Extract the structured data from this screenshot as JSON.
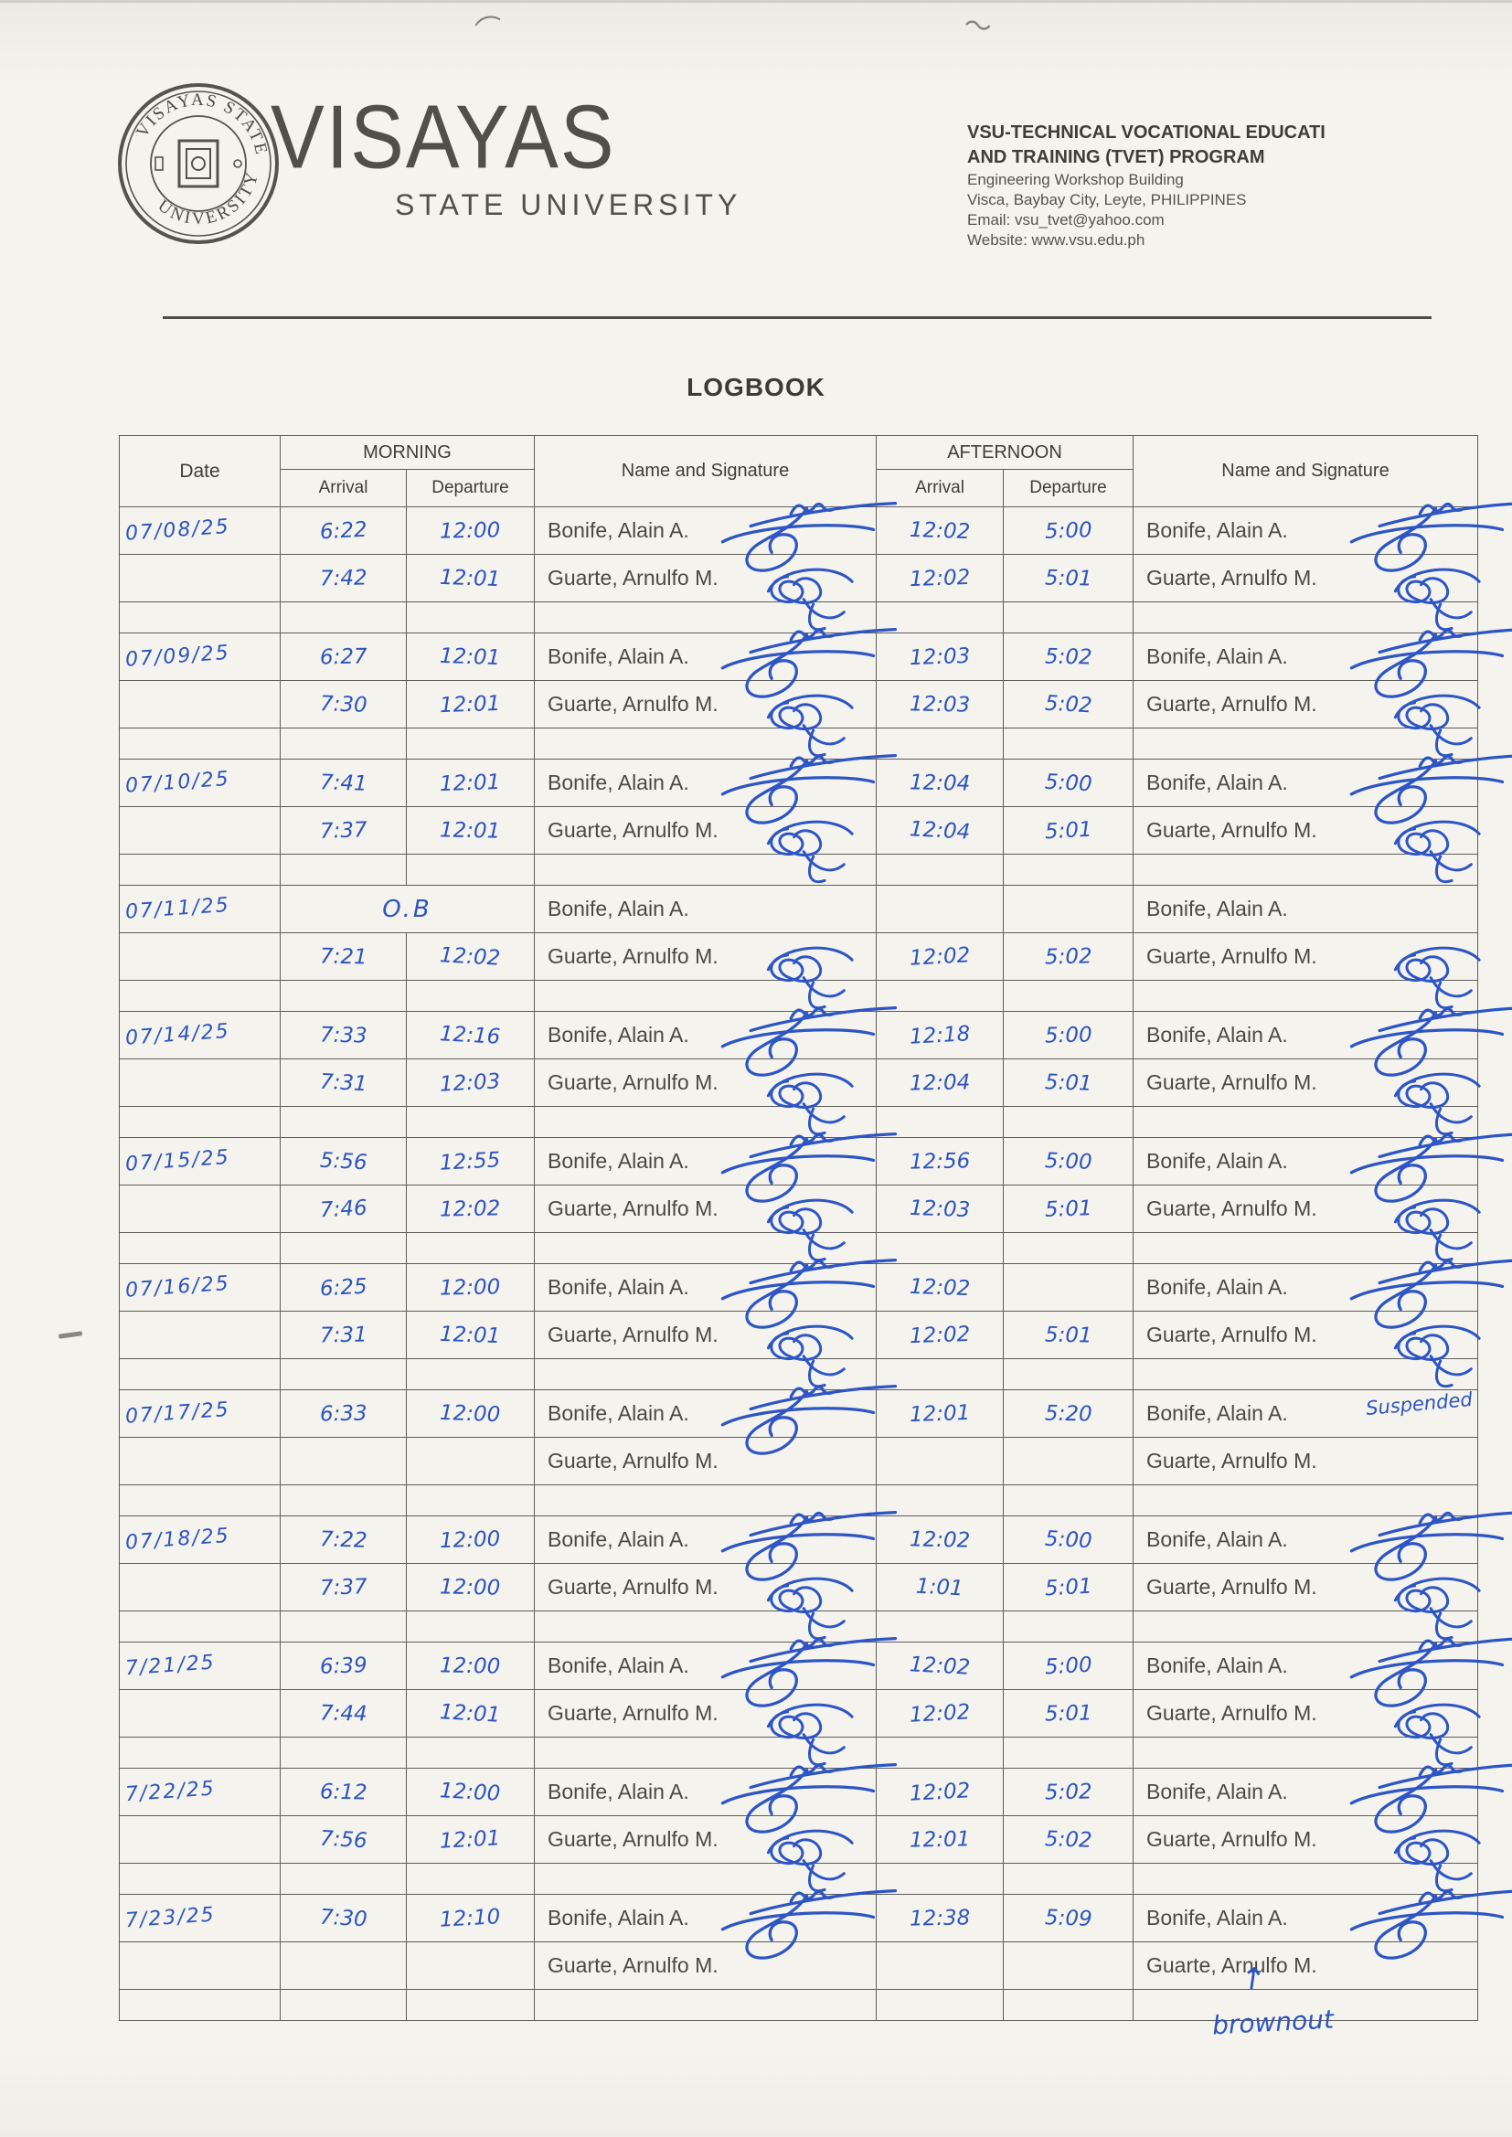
{
  "header": {
    "seal_top": "VISAYAS STATE",
    "seal_bottom": "UNIVERSITY",
    "wordmark": "VISAYAS",
    "wordmark_sub": "STATE UNIVERSITY",
    "program_line1": "VSU-TECHNICAL VOCATIONAL EDUCATI",
    "program_line2": "AND TRAINING (TVET) PROGRAM",
    "address_line1": "Engineering Workshop Building",
    "address_line2": "Visca, Baybay City, Leyte, PHILIPPINES",
    "email_line": "Email: vsu_tvet@yahoo.com",
    "website_line": "Website: www.vsu.edu.ph"
  },
  "title": "LOGBOOK",
  "colors": {
    "ink_blue": "#2e55bd",
    "table_line": "#5f5d57",
    "printed_text": "#4b4945",
    "paper": "#f4f2ec"
  },
  "table": {
    "headers": {
      "date": "Date",
      "morning": "MORNING",
      "afternoon": "AFTERNOON",
      "arrival": "Arrival",
      "departure": "Departure",
      "name_sig": "Name and Signature"
    },
    "entries": [
      {
        "date": "07/08/25",
        "rows": [
          {
            "name": "Bonife, Alain A.",
            "m_arr": "6:22",
            "m_dep": "12:00",
            "a_arr": "12:02",
            "a_dep": "5:00",
            "sig1": "bonife",
            "sig2": "bonife",
            "merged": ""
          },
          {
            "name": "Guarte, Arnulfo M.",
            "m_arr": "7:42",
            "m_dep": "12:01",
            "a_arr": "12:02",
            "a_dep": "5:01",
            "sig1": "guarte",
            "sig2": "guarte",
            "merged": ""
          }
        ]
      },
      {
        "date": "07/09/25",
        "rows": [
          {
            "name": "Bonife, Alain A.",
            "m_arr": "6:27",
            "m_dep": "12:01",
            "a_arr": "12:03",
            "a_dep": "5:02",
            "sig1": "bonife",
            "sig2": "bonife",
            "merged": ""
          },
          {
            "name": "Guarte, Arnulfo M.",
            "m_arr": "7:30",
            "m_dep": "12:01",
            "a_arr": "12:03",
            "a_dep": "5:02",
            "sig1": "guarte",
            "sig2": "guarte",
            "merged": ""
          }
        ]
      },
      {
        "date": "07/10/25",
        "rows": [
          {
            "name": "Bonife, Alain A.",
            "m_arr": "7:41",
            "m_dep": "12:01",
            "a_arr": "12:04",
            "a_dep": "5:00",
            "sig1": "bonife",
            "sig2": "bonife",
            "merged": ""
          },
          {
            "name": "Guarte, Arnulfo M.",
            "m_arr": "7:37",
            "m_dep": "12:01",
            "a_arr": "12:04",
            "a_dep": "5:01",
            "sig1": "guarte",
            "sig2": "guarte",
            "merged": ""
          }
        ]
      },
      {
        "date": "07/11/25",
        "rows": [
          {
            "name": "Bonife, Alain A.",
            "m_arr": "",
            "m_dep": "",
            "a_arr": "",
            "a_dep": "",
            "sig1": "",
            "sig2": "",
            "merged": "O.B"
          },
          {
            "name": "Guarte, Arnulfo M.",
            "m_arr": "7:21",
            "m_dep": "12:02",
            "a_arr": "12:02",
            "a_dep": "5:02",
            "sig1": "guarte",
            "sig2": "guarte",
            "merged": ""
          }
        ]
      },
      {
        "date": "07/14/25",
        "rows": [
          {
            "name": "Bonife, Alain A.",
            "m_arr": "7:33",
            "m_dep": "12:16",
            "a_arr": "12:18",
            "a_dep": "5:00",
            "sig1": "bonife",
            "sig2": "bonife",
            "merged": ""
          },
          {
            "name": "Guarte, Arnulfo M.",
            "m_arr": "7:31",
            "m_dep": "12:03",
            "a_arr": "12:04",
            "a_dep": "5:01",
            "sig1": "guarte",
            "sig2": "guarte",
            "merged": ""
          }
        ]
      },
      {
        "date": "07/15/25",
        "rows": [
          {
            "name": "Bonife, Alain A.",
            "m_arr": "5:56",
            "m_dep": "12:55",
            "a_arr": "12:56",
            "a_dep": "5:00",
            "sig1": "bonife",
            "sig2": "bonife",
            "merged": ""
          },
          {
            "name": "Guarte, Arnulfo M.",
            "m_arr": "7:46",
            "m_dep": "12:02",
            "a_arr": "12:03",
            "a_dep": "5:01",
            "sig1": "guarte",
            "sig2": "guarte",
            "merged": ""
          }
        ]
      },
      {
        "date": "07/16/25",
        "rows": [
          {
            "name": "Bonife, Alain A.",
            "m_arr": "6:25",
            "m_dep": "12:00",
            "a_arr": "12:02",
            "a_dep": "",
            "sig1": "bonife",
            "sig2": "bonife",
            "merged": ""
          },
          {
            "name": "Guarte, Arnulfo M.",
            "m_arr": "7:31",
            "m_dep": "12:01",
            "a_arr": "12:02",
            "a_dep": "5:01",
            "sig1": "guarte",
            "sig2": "guarte",
            "merged": ""
          }
        ]
      },
      {
        "date": "07/17/25",
        "rows": [
          {
            "name": "Bonife, Alain A.",
            "m_arr": "6:33",
            "m_dep": "12:00",
            "a_arr": "12:01",
            "a_dep": "5:20",
            "sig1": "bonife",
            "sig2": "",
            "merged": ""
          },
          {
            "name": "Guarte, Arnulfo M.",
            "m_arr": "",
            "m_dep": "",
            "a_arr": "",
            "a_dep": "",
            "sig1": "",
            "sig2": "",
            "merged": ""
          }
        ]
      },
      {
        "date": "07/18/25",
        "rows": [
          {
            "name": "Bonife, Alain A.",
            "m_arr": "7:22",
            "m_dep": "12:00",
            "a_arr": "12:02",
            "a_dep": "5:00",
            "sig1": "bonife",
            "sig2": "bonife",
            "merged": ""
          },
          {
            "name": "Guarte, Arnulfo M.",
            "m_arr": "7:37",
            "m_dep": "12:00",
            "a_arr": "1:01",
            "a_dep": "5:01",
            "sig1": "guarte",
            "sig2": "guarte",
            "merged": ""
          }
        ]
      },
      {
        "date": "7/21/25",
        "rows": [
          {
            "name": "Bonife, Alain A.",
            "m_arr": "6:39",
            "m_dep": "12:00",
            "a_arr": "12:02",
            "a_dep": "5:00",
            "sig1": "bonife",
            "sig2": "bonife",
            "merged": ""
          },
          {
            "name": "Guarte, Arnulfo M.",
            "m_arr": "7:44",
            "m_dep": "12:01",
            "a_arr": "12:02",
            "a_dep": "5:01",
            "sig1": "guarte",
            "sig2": "guarte",
            "merged": ""
          }
        ]
      },
      {
        "date": "7/22/25",
        "rows": [
          {
            "name": "Bonife, Alain A.",
            "m_arr": "6:12",
            "m_dep": "12:00",
            "a_arr": "12:02",
            "a_dep": "5:02",
            "sig1": "bonife",
            "sig2": "bonife",
            "merged": ""
          },
          {
            "name": "Guarte, Arnulfo M.",
            "m_arr": "7:56",
            "m_dep": "12:01",
            "a_arr": "12:01",
            "a_dep": "5:02",
            "sig1": "guarte",
            "sig2": "guarte",
            "merged": ""
          }
        ]
      },
      {
        "date": "7/23/25",
        "rows": [
          {
            "name": "Bonife, Alain A.",
            "m_arr": "7:30",
            "m_dep": "12:10",
            "a_arr": "12:38",
            "a_dep": "5:09",
            "sig1": "bonife",
            "sig2": "bonife",
            "merged": ""
          },
          {
            "name": "Guarte, Arnulfo M.",
            "m_arr": "",
            "m_dep": "",
            "a_arr": "",
            "a_dep": "",
            "sig1": "",
            "sig2": "",
            "merged": ""
          }
        ]
      }
    ]
  },
  "annotations": {
    "suspended": "Suspended",
    "brownout": "brownout",
    "arrow": "↑"
  }
}
